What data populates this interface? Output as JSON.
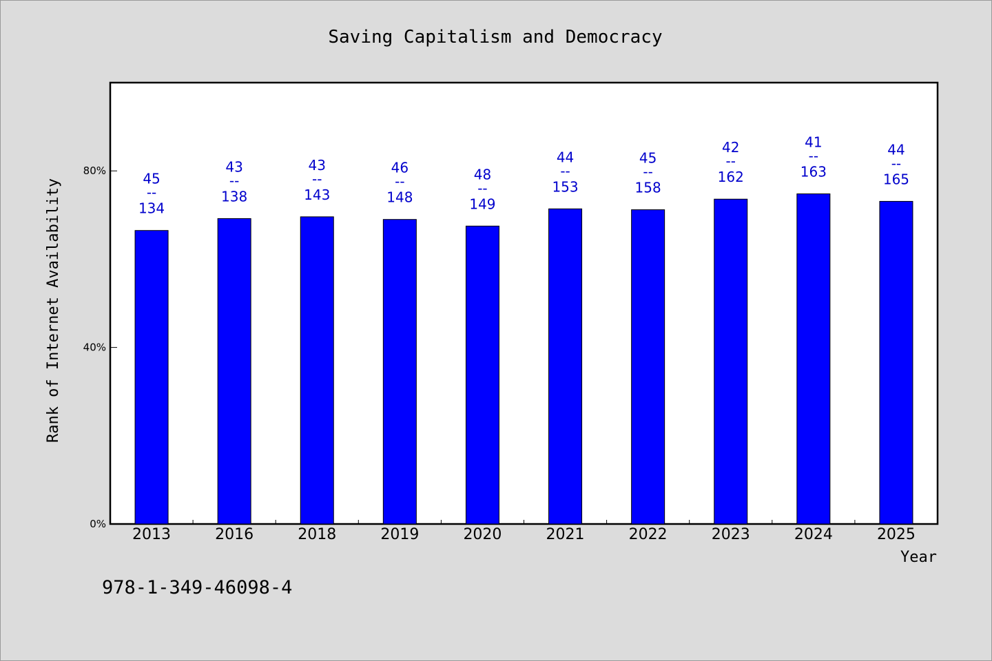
{
  "chart_data": {
    "type": "bar",
    "title": "Saving Capitalism and Democracy",
    "xlabel": "Year",
    "ylabel": "Rank of Internet Availability",
    "categories": [
      "2013",
      "2016",
      "2018",
      "2019",
      "2020",
      "2021",
      "2022",
      "2023",
      "2024",
      "2025"
    ],
    "values": [
      66.5,
      69.2,
      69.6,
      69.0,
      67.5,
      71.4,
      71.2,
      73.6,
      74.8,
      73.1
    ],
    "labels_top": [
      "45",
      "43",
      "43",
      "46",
      "48",
      "44",
      "45",
      "42",
      "41",
      "44"
    ],
    "labels_bottom": [
      "134",
      "138",
      "143",
      "148",
      "149",
      "153",
      "158",
      "162",
      "163",
      "165"
    ],
    "label_separator": "--",
    "ylim": [
      0,
      100
    ],
    "yticks": [
      0,
      40,
      80
    ],
    "ytick_labels": [
      "0%",
      "40%",
      "80%"
    ],
    "bar_color": "#0000ff",
    "label_color": "#0000cc",
    "grid": false,
    "legend": "none"
  },
  "footer": {
    "isbn": "978-1-349-46098-4"
  }
}
